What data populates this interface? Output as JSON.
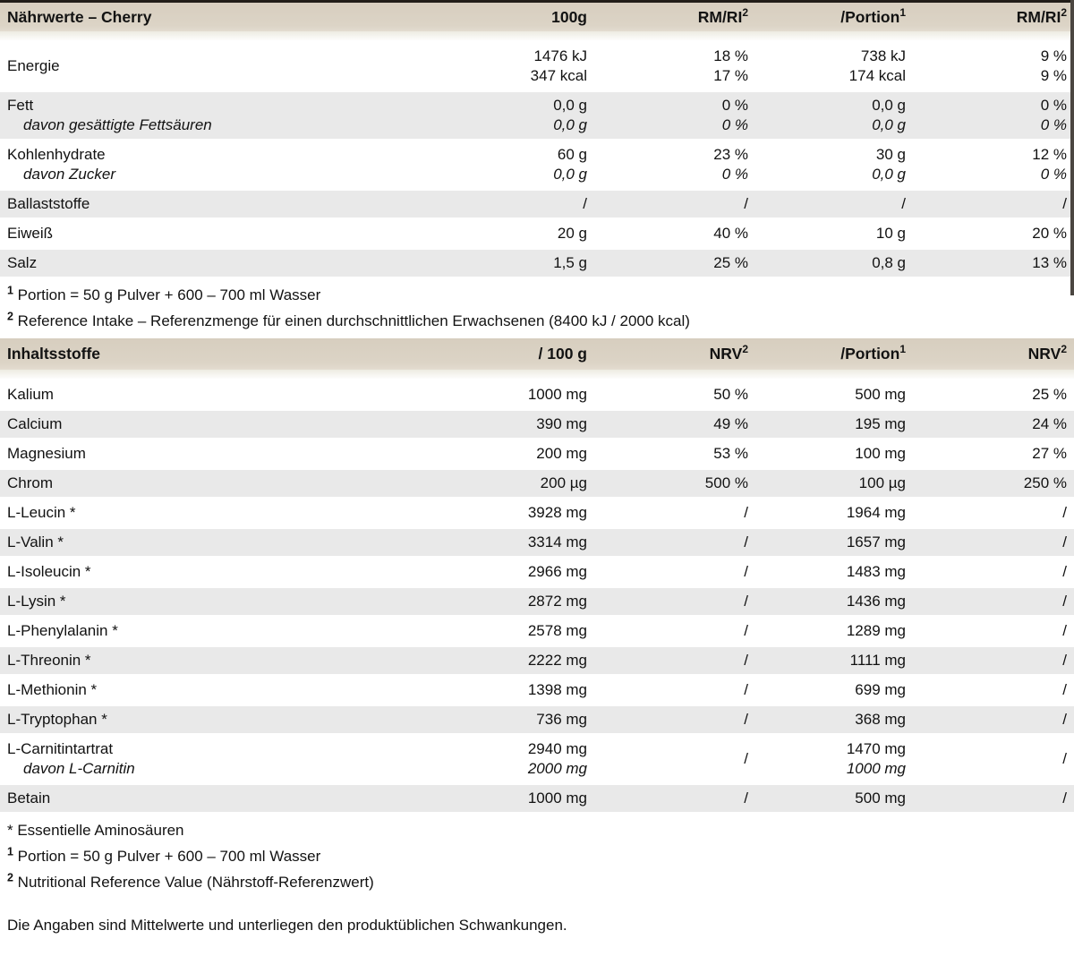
{
  "colors": {
    "header_band": "#dcd4c6",
    "row_shade_gray": "#e9e9e9",
    "top_border": "#211d18",
    "right_bar": "#4b4641"
  },
  "table1": {
    "title": "Nährwerte – Cherry",
    "columns": [
      {
        "label": "100g",
        "sup": ""
      },
      {
        "label": "RM/RI",
        "sup": "2"
      },
      {
        "label": "/Portion",
        "sup": "1"
      },
      {
        "label": "RM/RI",
        "sup": "2"
      }
    ],
    "rows": [
      {
        "label": "Energie",
        "cells": [
          [
            "1476 kJ",
            "347 kcal"
          ],
          [
            "18 %",
            "17 %"
          ],
          [
            "738 kJ",
            "174 kcal"
          ],
          [
            "9 %",
            "9 %"
          ]
        ],
        "shade": "white",
        "italic_second": false
      },
      {
        "label": "Fett",
        "sub_label": "davon gesättigte Fettsäuren",
        "cells": [
          [
            "0,0 g",
            "0,0 g"
          ],
          [
            "0 %",
            "0 %"
          ],
          [
            "0,0 g",
            "0,0 g"
          ],
          [
            "0 %",
            "0 %"
          ]
        ],
        "shade": "gray",
        "italic_second": true
      },
      {
        "label": "Kohlenhydrate",
        "sub_label": "davon Zucker",
        "cells": [
          [
            "60 g",
            "0,0 g"
          ],
          [
            "23 %",
            "0 %"
          ],
          [
            "30 g",
            "0,0 g"
          ],
          [
            "12 %",
            "0 %"
          ]
        ],
        "shade": "white",
        "italic_second": true
      },
      {
        "label": "Ballaststoffe",
        "cells": [
          [
            "/"
          ],
          [
            "/"
          ],
          [
            "/"
          ],
          [
            "/"
          ]
        ],
        "shade": "gray",
        "italic_second": false
      },
      {
        "label": "Eiweiß",
        "cells": [
          [
            "20 g"
          ],
          [
            "40 %"
          ],
          [
            "10 g"
          ],
          [
            "20 %"
          ]
        ],
        "shade": "white",
        "italic_second": false
      },
      {
        "label": "Salz",
        "cells": [
          [
            "1,5 g"
          ],
          [
            "25 %"
          ],
          [
            "0,8 g"
          ],
          [
            "13 %"
          ]
        ],
        "shade": "gray",
        "italic_second": false
      }
    ],
    "footnotes": [
      {
        "marker": "1",
        "text": "Portion = 50 g Pulver + 600 – 700 ml Wasser"
      },
      {
        "marker": "2",
        "text": "Reference Intake – Referenzmenge für einen durchschnittlichen Erwachsenen (8400 kJ / 2000 kcal)"
      }
    ]
  },
  "table2": {
    "title": "Inhaltsstoffe",
    "columns": [
      {
        "label": "/ 100 g",
        "sup": ""
      },
      {
        "label": "NRV",
        "sup": "2"
      },
      {
        "label": "/Portion",
        "sup": "1"
      },
      {
        "label": "NRV",
        "sup": "2"
      }
    ],
    "rows": [
      {
        "label": "Kalium",
        "cells": [
          [
            "1000 mg"
          ],
          [
            "50 %"
          ],
          [
            "500 mg"
          ],
          [
            "25 %"
          ]
        ],
        "shade": "white",
        "italic_second": false
      },
      {
        "label": "Calcium",
        "cells": [
          [
            "390 mg"
          ],
          [
            "49 %"
          ],
          [
            "195 mg"
          ],
          [
            "24 %"
          ]
        ],
        "shade": "gray",
        "italic_second": false
      },
      {
        "label": "Magnesium",
        "cells": [
          [
            "200 mg"
          ],
          [
            "53 %"
          ],
          [
            "100 mg"
          ],
          [
            "27 %"
          ]
        ],
        "shade": "white",
        "italic_second": false
      },
      {
        "label": "Chrom",
        "cells": [
          [
            "200 µg"
          ],
          [
            "500 %"
          ],
          [
            "100 µg"
          ],
          [
            "250 %"
          ]
        ],
        "shade": "gray",
        "italic_second": false
      },
      {
        "label": "L-Leucin *",
        "cells": [
          [
            "3928 mg"
          ],
          [
            "/"
          ],
          [
            "1964 mg"
          ],
          [
            "/"
          ]
        ],
        "shade": "white",
        "italic_second": false
      },
      {
        "label": "L-Valin *",
        "cells": [
          [
            "3314 mg"
          ],
          [
            "/"
          ],
          [
            "1657 mg"
          ],
          [
            "/"
          ]
        ],
        "shade": "gray",
        "italic_second": false
      },
      {
        "label": "L-Isoleucin *",
        "cells": [
          [
            "2966 mg"
          ],
          [
            "/"
          ],
          [
            "1483 mg"
          ],
          [
            "/"
          ]
        ],
        "shade": "white",
        "italic_second": false
      },
      {
        "label": "L-Lysin *",
        "cells": [
          [
            "2872 mg"
          ],
          [
            "/"
          ],
          [
            "1436 mg"
          ],
          [
            "/"
          ]
        ],
        "shade": "gray",
        "italic_second": false
      },
      {
        "label": "L-Phenylalanin *",
        "cells": [
          [
            "2578 mg"
          ],
          [
            "/"
          ],
          [
            "1289 mg"
          ],
          [
            "/"
          ]
        ],
        "shade": "white",
        "italic_second": false
      },
      {
        "label": "L-Threonin *",
        "cells": [
          [
            "2222 mg"
          ],
          [
            "/"
          ],
          [
            "1111 mg"
          ],
          [
            "/"
          ]
        ],
        "shade": "gray",
        "italic_second": false
      },
      {
        "label": "L-Methionin *",
        "cells": [
          [
            "1398 mg"
          ],
          [
            "/"
          ],
          [
            "699 mg"
          ],
          [
            "/"
          ]
        ],
        "shade": "white",
        "italic_second": false
      },
      {
        "label": "L-Tryptophan *",
        "cells": [
          [
            "736 mg"
          ],
          [
            "/"
          ],
          [
            "368 mg"
          ],
          [
            "/"
          ]
        ],
        "shade": "gray",
        "italic_second": false
      },
      {
        "label": "L-Carnitintartrat",
        "sub_label": "davon L-Carnitin",
        "cells": [
          [
            "2940 mg",
            "2000 mg"
          ],
          [
            "/"
          ],
          [
            "1470 mg",
            "1000 mg"
          ],
          [
            "/"
          ]
        ],
        "shade": "white",
        "italic_second": true
      },
      {
        "label": "Betain",
        "cells": [
          [
            "1000 mg"
          ],
          [
            "/"
          ],
          [
            "500 mg"
          ],
          [
            "/"
          ]
        ],
        "shade": "gray",
        "italic_second": false
      }
    ],
    "footnotes": [
      {
        "marker": "*",
        "text": "Essentielle Aminosäuren"
      },
      {
        "marker": "1",
        "text": "Portion = 50 g Pulver + 600 – 700 ml Wasser"
      },
      {
        "marker": "2",
        "text": "Nutritional Reference Value (Nährstoff-Referenzwert)"
      }
    ]
  },
  "disclaimer": "Die Angaben sind Mittelwerte und unterliegen den produktüblichen Schwankungen."
}
